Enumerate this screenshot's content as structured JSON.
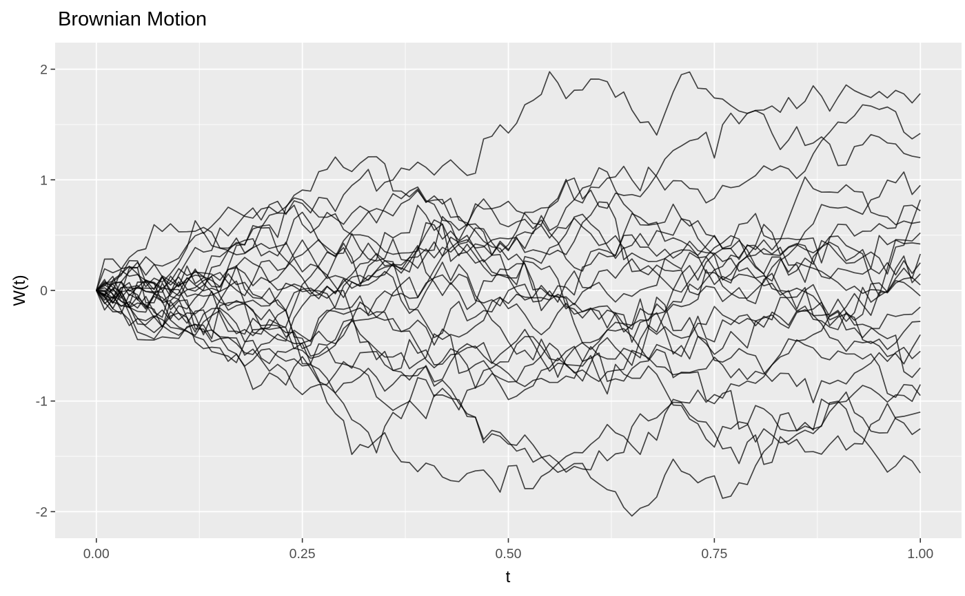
{
  "chart_data": {
    "type": "line",
    "title": "Brownian Motion",
    "xlabel": "t",
    "ylabel": "W(t)",
    "legend": "none",
    "grid": "on",
    "x_ticks": {
      "values": [
        0,
        0.25,
        0.5,
        0.75,
        1
      ],
      "labels": [
        "0.00",
        "0.25",
        "0.50",
        "0.75",
        "1.00"
      ]
    },
    "y_ticks": {
      "values": [
        -2,
        -1,
        0,
        1,
        2
      ],
      "labels": [
        "-2",
        "-1",
        "0",
        "1",
        "2"
      ]
    },
    "x_minor_gridlines": [
      0.125,
      0.375,
      0.625,
      0.875
    ],
    "y_minor_gridlines": [
      -1.5,
      -0.5,
      0.5,
      1.5
    ],
    "x_domain": [
      -0.05,
      1.05
    ],
    "y_domain": [
      -2.24,
      2.24
    ],
    "x_data_range": [
      0,
      1
    ],
    "y_data_range": [
      -2.05,
      2.05
    ],
    "start_value": 0,
    "sigma": 1,
    "n_paths": 24,
    "n_steps": 100,
    "paths": [
      {
        "seed": 7,
        "end": 1.78
      },
      {
        "seed": 23,
        "end": 1.42
      },
      {
        "seed": 41,
        "end": 1.2
      },
      {
        "seed": 59,
        "end": 0.95
      },
      {
        "seed": 73,
        "end": 0.82
      },
      {
        "seed": 97,
        "end": 0.72
      },
      {
        "seed": 113,
        "end": 0.62
      },
      {
        "seed": 137,
        "end": 0.52
      },
      {
        "seed": 151,
        "end": 0.42
      },
      {
        "seed": 179,
        "end": 0.33
      },
      {
        "seed": 197,
        "end": 0.25
      },
      {
        "seed": 223,
        "end": 0.15
      },
      {
        "seed": 241,
        "end": 0.05
      },
      {
        "seed": 269,
        "end": -0.05
      },
      {
        "seed": 283,
        "end": -0.15
      },
      {
        "seed": 311,
        "end": -0.28
      },
      {
        "seed": 337,
        "end": -0.4
      },
      {
        "seed": 359,
        "end": -0.55
      },
      {
        "seed": 383,
        "end": -0.7
      },
      {
        "seed": 409,
        "end": -0.85
      },
      {
        "seed": 433,
        "end": -0.95
      },
      {
        "seed": 457,
        "end": -1.1
      },
      {
        "seed": 479,
        "end": -1.25
      },
      {
        "seed": 503,
        "end": -1.65
      }
    ],
    "colors": {
      "page_bg": "#FFFFFF",
      "panel_bg": "#EBEBEB",
      "gridline": "#FFFFFF",
      "path_line": "rgba(0,0,0,0.72)",
      "tick_mark": "#333333",
      "tick_label": "#4D4D4D",
      "title_text": "#000000",
      "axis_title_text": "#000000"
    }
  }
}
